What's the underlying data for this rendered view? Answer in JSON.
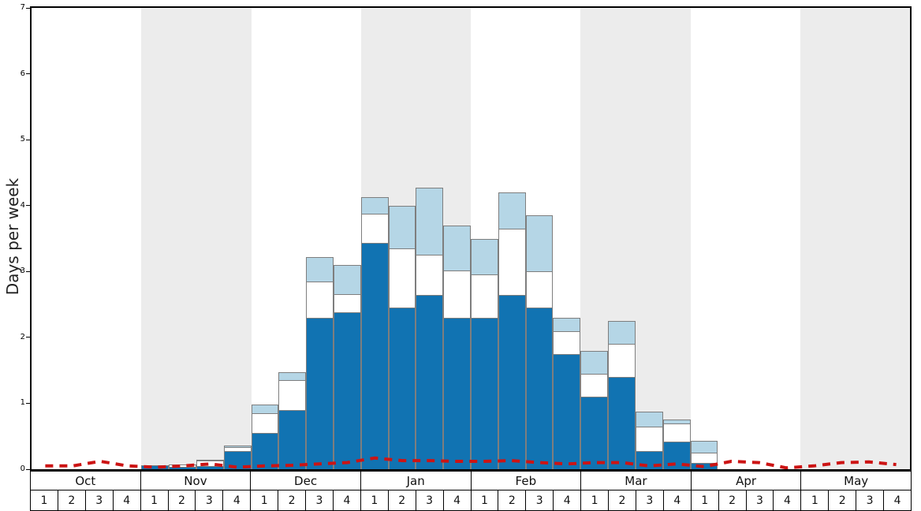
{
  "chart": {
    "ylabel": "Days per week",
    "y_tick_labels": [
      "0",
      "1",
      "2",
      "3",
      "4",
      "5",
      "6",
      "7"
    ]
  },
  "chart_data": {
    "type": "bar",
    "stacked": true,
    "title": "",
    "xlabel": "",
    "ylabel": "Days per week",
    "ylim": [
      0,
      7
    ],
    "grid": false,
    "band_color": "#ececec",
    "months": [
      "Oct",
      "Nov",
      "Dec",
      "Jan",
      "Feb",
      "Mar",
      "Apr",
      "May"
    ],
    "weeks_per_month": 4,
    "week_labels": [
      "1",
      "2",
      "3",
      "4"
    ],
    "series": [
      {
        "name": "dark-blue",
        "color": "#1173b2",
        "values": [
          0,
          0,
          0,
          0,
          0.06,
          0.04,
          0.05,
          0.28,
          0.55,
          0.9,
          2.3,
          2.38,
          3.43,
          2.45,
          2.65,
          2.3,
          2.3,
          2.65,
          2.45,
          1.75,
          1.1,
          1.4,
          0.28,
          0.42,
          0.1,
          0,
          0,
          0,
          0,
          0,
          0,
          0
        ]
      },
      {
        "name": "white",
        "color": "#ffffff",
        "values": [
          0,
          0,
          0,
          0,
          0,
          0.03,
          0.08,
          0.05,
          0.3,
          0.45,
          0.55,
          0.28,
          0.45,
          0.9,
          0.6,
          0.72,
          0.65,
          1.0,
          0.55,
          0.35,
          0.35,
          0.5,
          0.37,
          0.28,
          0.15,
          0,
          0,
          0,
          0,
          0,
          0,
          0
        ]
      },
      {
        "name": "light-blue",
        "color": "#b5d6e6",
        "values": [
          0,
          0,
          0,
          0,
          0,
          0,
          0.02,
          0.03,
          0.13,
          0.12,
          0.37,
          0.44,
          0.25,
          0.65,
          1.02,
          0.68,
          0.55,
          0.55,
          0.85,
          0.2,
          0.35,
          0.35,
          0.22,
          0.06,
          0.18,
          0,
          0,
          0,
          0,
          0,
          0,
          0
        ]
      }
    ],
    "line_series": {
      "name": "red-dashed-line",
      "color": "#cc1414",
      "style": "dashed",
      "values": [
        0.05,
        0.05,
        0.12,
        0.05,
        0.03,
        0.05,
        0.08,
        0.03,
        0.05,
        0.06,
        0.08,
        0.1,
        0.17,
        0.13,
        0.13,
        0.12,
        0.12,
        0.13,
        0.1,
        0.08,
        0.1,
        0.1,
        0.05,
        0.08,
        0.04,
        0.12,
        0.1,
        0.02,
        0.05,
        0.1,
        0.11,
        0.07
      ]
    }
  }
}
